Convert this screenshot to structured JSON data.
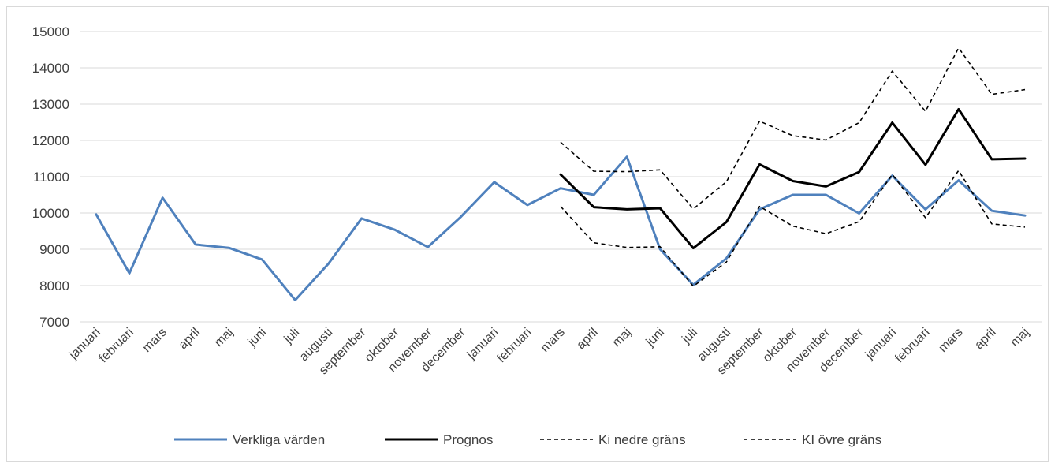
{
  "chart_data": {
    "type": "line",
    "title": "",
    "xlabel": "",
    "ylabel": "",
    "ylim": [
      7000,
      15000
    ],
    "yticks": [
      7000,
      8000,
      9000,
      10000,
      11000,
      12000,
      13000,
      14000,
      15000
    ],
    "grid": true,
    "legend_position": "bottom",
    "categories": [
      "januari",
      "februari",
      "mars",
      "april",
      "maj",
      "juni",
      "juli",
      "augusti",
      "september",
      "oktober",
      "november",
      "december",
      "januari",
      "februari",
      "mars",
      "april",
      "maj",
      "juni",
      "juli",
      "augusti",
      "september",
      "oktober",
      "november",
      "december",
      "januari",
      "februari",
      "mars",
      "april",
      "maj"
    ],
    "series": [
      {
        "name": "Verkliga värden",
        "color": "#4f81bd",
        "style": "solid",
        "values": [
          9960,
          8340,
          10420,
          9130,
          9040,
          8720,
          7600,
          8600,
          9850,
          9540,
          9060,
          9900,
          10850,
          10220,
          10680,
          10500,
          11550,
          9000,
          8020,
          8750,
          10100,
          10500,
          10500,
          9990,
          11030,
          10100,
          10900,
          10060,
          9930
        ]
      },
      {
        "name": "Prognos",
        "color": "#000000",
        "style": "solid",
        "values": [
          null,
          null,
          null,
          null,
          null,
          null,
          null,
          null,
          null,
          null,
          null,
          null,
          null,
          null,
          11060,
          10160,
          10100,
          10130,
          9030,
          9750,
          11340,
          10880,
          10730,
          11130,
          12490,
          11330,
          12860,
          11480,
          11500
        ]
      },
      {
        "name": "Ki nedre gräns",
        "color": "#000000",
        "style": "dashed",
        "values": [
          null,
          null,
          null,
          null,
          null,
          null,
          null,
          null,
          null,
          null,
          null,
          null,
          null,
          null,
          10180,
          9180,
          9050,
          9070,
          7980,
          8650,
          10180,
          9640,
          9430,
          9760,
          11060,
          9870,
          11170,
          9700,
          9610
        ]
      },
      {
        "name": "KI övre gräns",
        "color": "#000000",
        "style": "dashed",
        "values": [
          null,
          null,
          null,
          null,
          null,
          null,
          null,
          null,
          null,
          null,
          null,
          null,
          null,
          null,
          11950,
          11150,
          11140,
          11190,
          10110,
          10860,
          12530,
          12130,
          12010,
          12490,
          13910,
          12800,
          14550,
          13270,
          13400
        ]
      }
    ]
  }
}
